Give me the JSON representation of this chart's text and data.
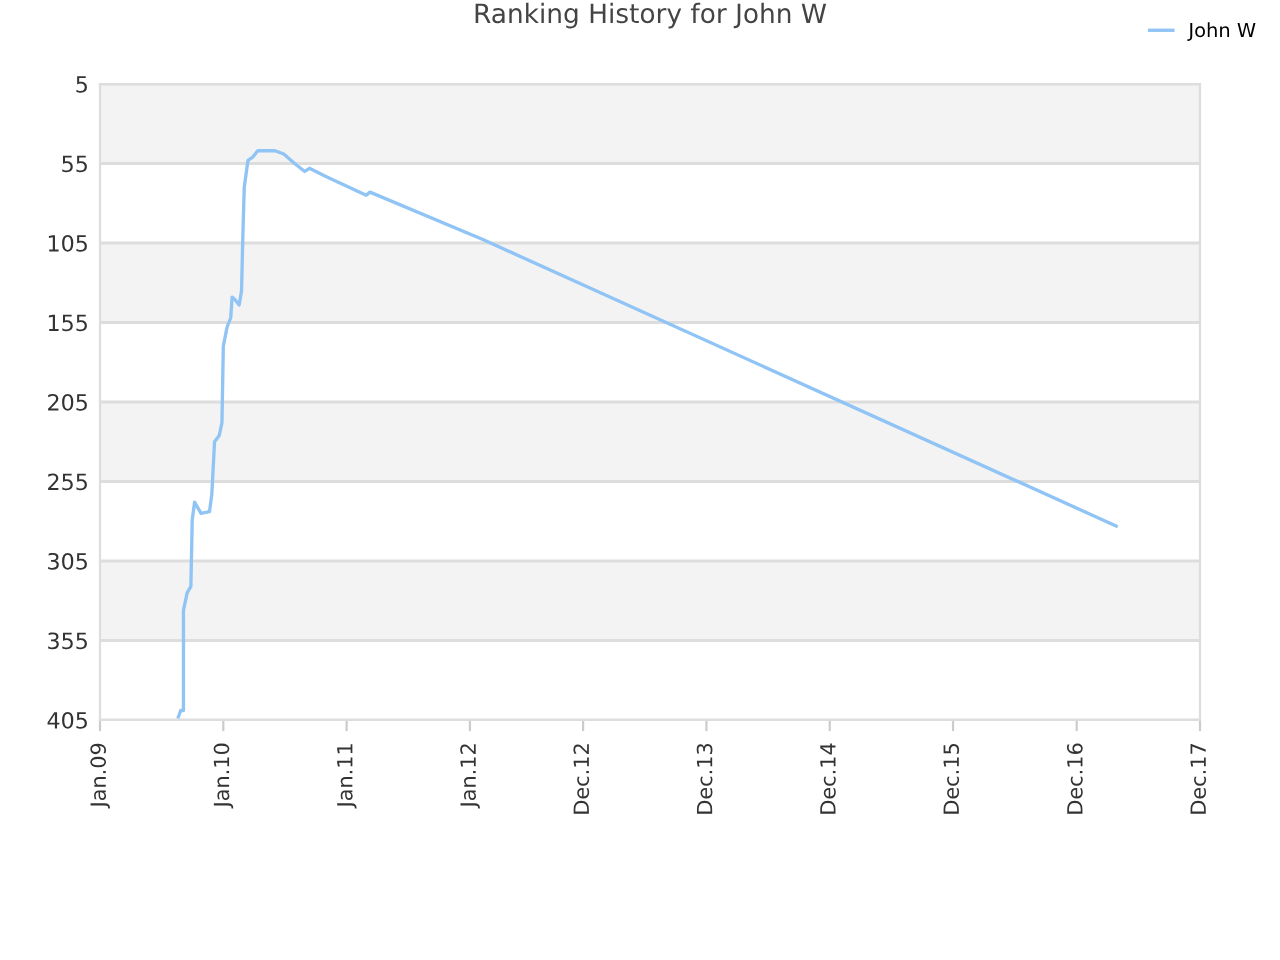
{
  "chart_data": {
    "type": "line",
    "title": "Ranking History for John W",
    "x": [
      "2009-08-21",
      "2009-08-28",
      "2009-09-05",
      "2009-09-05",
      "2009-09-16",
      "2009-09-27",
      "2009-10-01",
      "2009-10-08",
      "2009-10-27",
      "2009-11-21",
      "2009-11-28",
      "2009-12-06",
      "2009-12-20",
      "2009-12-28",
      "2010-01-01",
      "2010-01-12",
      "2010-01-23",
      "2010-01-27",
      "2010-02-06",
      "2010-02-17",
      "2010-02-24",
      "2010-02-28",
      "2010-03-04",
      "2010-03-15",
      "2010-03-29",
      "2010-04-13",
      "2010-05-12",
      "2010-06-03",
      "2010-06-29",
      "2010-07-31",
      "2010-08-30",
      "2010-09-13",
      "2010-10-30",
      "2011-02-28",
      "2011-03-11",
      "2012-02-10",
      "2017-03-28"
    ],
    "series": [
      {
        "name": "John W",
        "color": "#90c4f5",
        "values": [
          403,
          399,
          399,
          336,
          325,
          321,
          279,
          268,
          275,
          274,
          263,
          230,
          226,
          218,
          170,
          158,
          152,
          139,
          141,
          144,
          135,
          99,
          70,
          53,
          51,
          47,
          47,
          47,
          49,
          55,
          60,
          58,
          63,
          75,
          73,
          103,
          283
        ]
      }
    ],
    "xlim": [
      "2009-01-01",
      "2017-12-01"
    ],
    "xticks": [
      {
        "value": "2009-01-01",
        "label": "Jan.09"
      },
      {
        "value": "2010-01-01",
        "label": "Jan.10"
      },
      {
        "value": "2011-01-01",
        "label": "Jan.11"
      },
      {
        "value": "2012-01-01",
        "label": "Jan.12"
      },
      {
        "value": "2012-12-01",
        "label": "Dec.12"
      },
      {
        "value": "2013-12-01",
        "label": "Dec.13"
      },
      {
        "value": "2014-12-01",
        "label": "Dec.14"
      },
      {
        "value": "2015-12-01",
        "label": "Dec.15"
      },
      {
        "value": "2016-12-01",
        "label": "Dec.16"
      },
      {
        "value": "2017-12-01",
        "label": "Dec.17"
      }
    ],
    "ylim": [
      405,
      5
    ],
    "yticks": [
      5,
      55,
      105,
      155,
      205,
      255,
      305,
      355,
      405
    ],
    "grid": "y",
    "legend": "top right",
    "marker": "none",
    "line_style": "solid"
  }
}
